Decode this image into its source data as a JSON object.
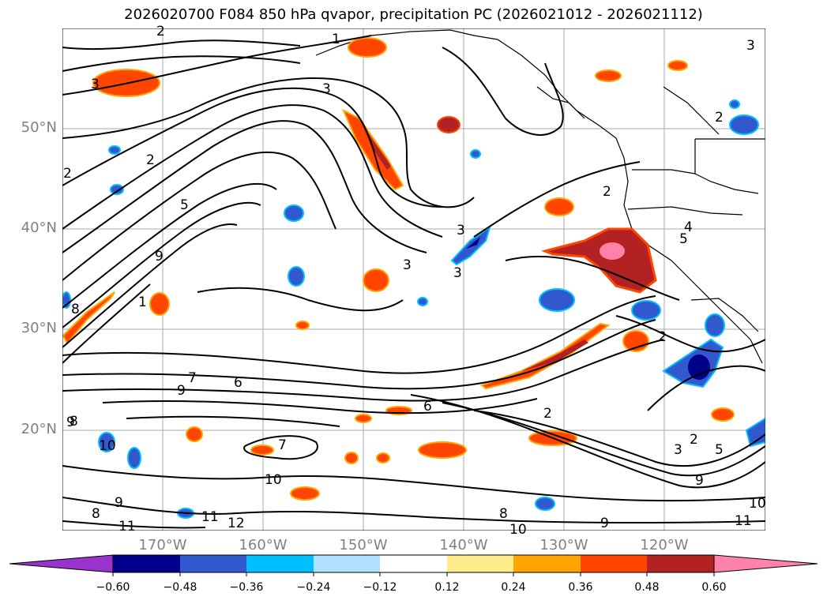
{
  "title": "2026020700 F084 850 hPa qvapor, precipitation PC (2026021012 - 2026021112)",
  "map": {
    "lat_labels": [
      "50°N",
      "40°N",
      "30°N",
      "20°N"
    ],
    "lon_labels": [
      "170°W",
      "160°W",
      "150°W",
      "140°W",
      "130°W",
      "120°W"
    ],
    "gridline_color": "#aaaaaa",
    "contour_labels": [
      "2",
      "1",
      "3",
      "3",
      "2",
      "5",
      "9",
      "1",
      "2",
      "8",
      "3",
      "3",
      "2",
      "4",
      "5",
      "9",
      "7",
      "6",
      "9",
      "8",
      "6",
      "2",
      "7",
      "10",
      "10",
      "9",
      "8",
      "11",
      "11",
      "12",
      "8",
      "10",
      "9",
      "3",
      "2",
      "5",
      "9",
      "11",
      "10",
      "2",
      "3",
      "2",
      "3"
    ]
  },
  "colorbar": {
    "ticks": [
      "−0.60",
      "−0.48",
      "−0.36",
      "−0.24",
      "−0.12",
      "0.12",
      "0.24",
      "0.36",
      "0.48",
      "0.60"
    ],
    "colors": [
      "#9a32cd",
      "#00008b",
      "#3158cd",
      "#00bfff",
      "#b0e2ff",
      "#ffffff",
      "#ffec8b",
      "#ffa500",
      "#ff4500",
      "#b22222",
      "#ff82ab",
      "#ff82ab"
    ],
    "under_color": "#9a32cd",
    "over_color": "#ff82ab"
  }
}
